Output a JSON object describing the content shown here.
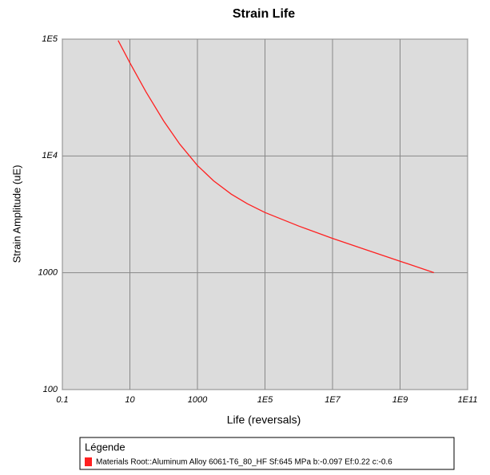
{
  "chart_data": {
    "type": "line",
    "title": "Strain Life",
    "x_label": "Life (reversals)",
    "y_label": "Strain Amplitude (uE)",
    "x": [
      4.5,
      10,
      30,
      100,
      300,
      1000,
      3000,
      10000,
      30000,
      100000,
      1000000,
      10000000,
      100000000,
      1000000000,
      10000000000
    ],
    "series": [
      {
        "name": "Materials Root::Aluminum Alloy 6061-T6_80_HF Sf:645 MPa  b:-0.097 Ef:0.22 c:-0.6",
        "color": "#ff2020",
        "values": [
          97300,
          62700,
          35300,
          19900,
          12600,
          8280,
          6120,
          4710,
          3900,
          3280,
          2510,
          1970,
          1570,
          1255,
          1003
        ]
      }
    ],
    "xlim": [
      0.1,
      100000000000
    ],
    "ylim": [
      100,
      100000
    ],
    "xticks": [
      0.1,
      10,
      1000,
      {
        "value": 100000,
        "label": "1E5"
      },
      {
        "value": 10000000,
        "label": "1E7"
      },
      {
        "value": 1000000000,
        "label": "1E9"
      },
      {
        "value": 100000000000,
        "label": "1E11"
      }
    ],
    "yticks": [
      100,
      1000,
      {
        "value": 10000,
        "label": "1E4"
      },
      {
        "value": 100000,
        "label": "1E5"
      }
    ],
    "log_x": true,
    "log_y": true,
    "grid": true,
    "legend_title": "Légende",
    "legend_position": "bottom"
  }
}
